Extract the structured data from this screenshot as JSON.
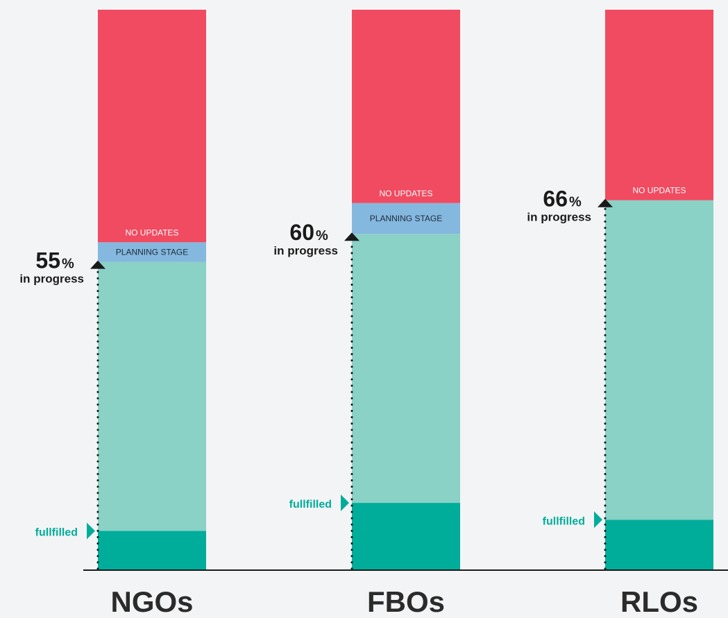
{
  "chart_data": {
    "type": "bar",
    "stacked": true,
    "categories": [
      "NGOs",
      "FBOs",
      "RLOs"
    ],
    "series": [
      {
        "key": "fulfilled",
        "values": [
          7,
          12,
          9
        ],
        "color": "#00ad9a"
      },
      {
        "key": "in_progress",
        "values": [
          48,
          48,
          57
        ],
        "color": "#8ad1c6"
      },
      {
        "key": "planning",
        "values": [
          3.5,
          5.5,
          0
        ],
        "color": "#85b8df"
      },
      {
        "key": "no_updates",
        "values": [
          41.5,
          34.5,
          34
        ],
        "color": "#f04b61"
      }
    ],
    "segment_labels": {
      "planning": "PLANNING STAGE",
      "no_updates": "NO UPDATES"
    },
    "in_progress_percent": [
      "55",
      "60",
      "66"
    ],
    "percent_sign": "%",
    "in_progress_caption": "in progress",
    "fulfilled_caption": "fullfilled",
    "ylim": [
      0,
      100
    ],
    "colors": {
      "axis": "#1a1a1a",
      "marker": "#1a1a1a",
      "fulfilled_text": "#00ad9a"
    }
  }
}
